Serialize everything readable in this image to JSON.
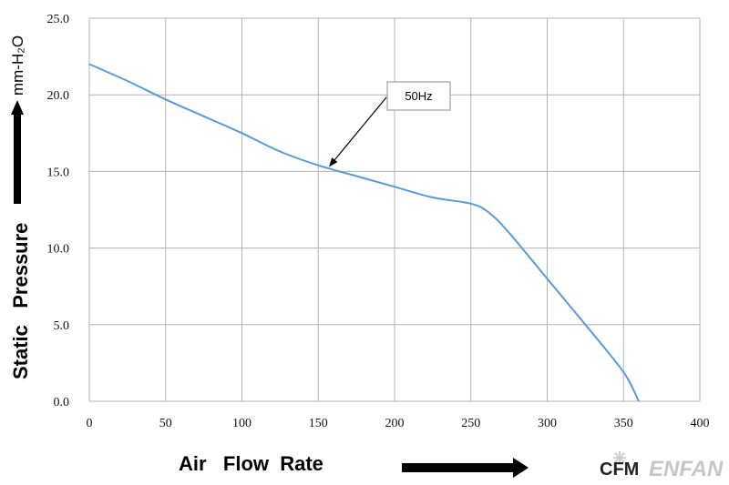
{
  "chart_data": {
    "type": "line",
    "title": "",
    "xlabel": "Air   Flow  Rate",
    "xunit": "CFM",
    "ylabel": "Static   Pressure",
    "yunit": "mm-H₂O",
    "xlim": [
      0,
      400
    ],
    "ylim": [
      0,
      25
    ],
    "xticks": [
      0,
      50,
      100,
      150,
      200,
      250,
      300,
      350,
      400
    ],
    "yticks": [
      "0.0",
      "5.0",
      "10.0",
      "15.0",
      "20.0",
      "25.0"
    ],
    "grid": true,
    "series": [
      {
        "name": "50Hz",
        "color": "#5b9bd5",
        "points": [
          [
            0,
            22.0
          ],
          [
            25,
            20.9
          ],
          [
            50,
            19.7
          ],
          [
            75,
            18.6
          ],
          [
            100,
            17.5
          ],
          [
            125,
            16.3
          ],
          [
            150,
            15.4
          ],
          [
            175,
            14.7
          ],
          [
            200,
            14.0
          ],
          [
            225,
            13.3
          ],
          [
            250,
            12.9
          ],
          [
            262,
            12.3
          ],
          [
            275,
            11.0
          ],
          [
            300,
            8.0
          ],
          [
            325,
            5.0
          ],
          [
            350,
            1.9
          ],
          [
            360,
            0.0
          ]
        ]
      }
    ],
    "annotation": {
      "text": "50Hz",
      "points_to": [
        157,
        15.3
      ]
    }
  },
  "watermark": "ENFAN",
  "colors": {
    "grid": "#b3b3b3",
    "line": "#5b9bd5",
    "axis_arrow": "#000000"
  }
}
